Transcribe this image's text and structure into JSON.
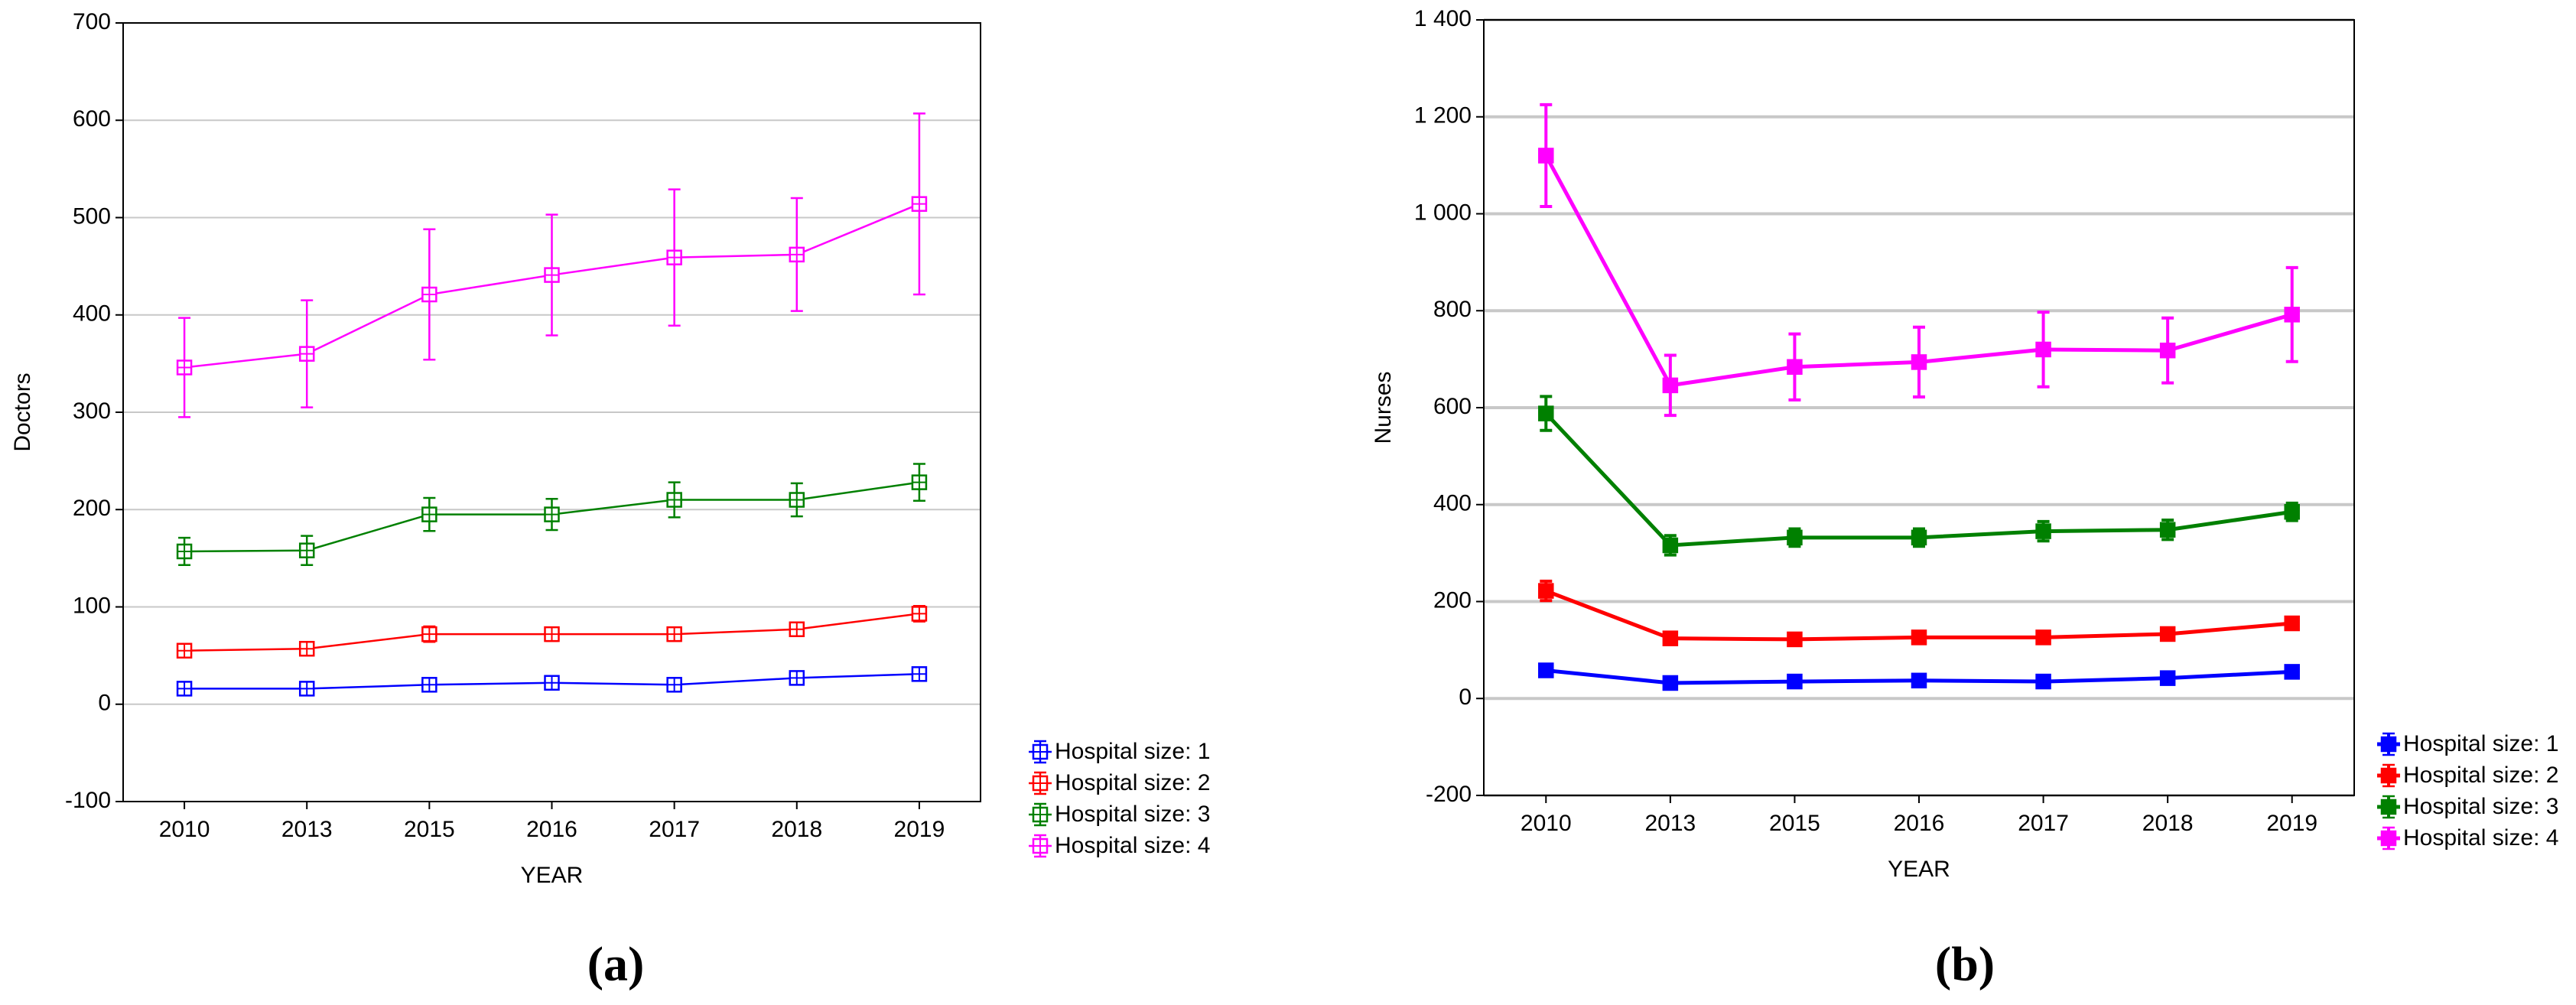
{
  "chart_data": [
    {
      "type": "line",
      "panel_label": "(a)",
      "x_label": "YEAR",
      "y_label": "Doctors",
      "categories": [
        "2010",
        "2013",
        "2015",
        "2016",
        "2017",
        "2018",
        "2019"
      ],
      "ylim": [
        -100,
        700
      ],
      "yticks": [
        -100,
        0,
        100,
        200,
        300,
        400,
        500,
        600,
        700
      ],
      "grid": true,
      "marker": "open-square",
      "series": [
        {
          "name": "Hospital size: 1",
          "color": "#0000ff",
          "values": [
            16,
            16,
            20,
            22,
            20,
            27,
            31
          ],
          "errors": [
            5,
            5,
            5,
            5,
            5,
            5,
            5
          ]
        },
        {
          "name": "Hospital size: 2",
          "color": "#ff0000",
          "values": [
            55,
            57,
            72,
            72,
            72,
            77,
            93
          ],
          "errors": [
            6,
            6,
            8,
            7,
            7,
            7,
            8
          ]
        },
        {
          "name": "Hospital size: 3",
          "color": "#008000",
          "values": [
            157,
            158,
            195,
            195,
            210,
            210,
            228
          ],
          "errors": [
            14,
            15,
            17,
            16,
            18,
            17,
            19
          ]
        },
        {
          "name": "Hospital size: 4",
          "color": "#ff00ff",
          "values": [
            346,
            360,
            421,
            441,
            459,
            462,
            514
          ],
          "errors": [
            51,
            55,
            67,
            62,
            70,
            58,
            93
          ]
        }
      ]
    },
    {
      "type": "line",
      "panel_label": "(b)",
      "x_label": "YEAR",
      "y_label": "Nurses",
      "categories": [
        "2010",
        "2013",
        "2015",
        "2016",
        "2017",
        "2018",
        "2019"
      ],
      "ylim": [
        -200,
        1400
      ],
      "yticks": [
        -200,
        0,
        200,
        400,
        600,
        800,
        {
          "value": 1000,
          "label": "1 000"
        },
        {
          "value": 1200,
          "label": "1 200"
        },
        {
          "value": 1400,
          "label": "1 400"
        }
      ],
      "grid": true,
      "marker": "filled-square",
      "series": [
        {
          "name": "Hospital size: 1",
          "color": "#0000ff",
          "values": [
            58,
            32,
            35,
            37,
            35,
            42,
            55
          ],
          "errors": [
            10,
            8,
            8,
            8,
            8,
            8,
            9
          ]
        },
        {
          "name": "Hospital size: 2",
          "color": "#ff0000",
          "values": [
            222,
            124,
            122,
            126,
            126,
            133,
            155
          ],
          "errors": [
            20,
            12,
            10,
            10,
            10,
            10,
            10
          ]
        },
        {
          "name": "Hospital size: 3",
          "color": "#008000",
          "values": [
            588,
            316,
            332,
            332,
            345,
            348,
            385
          ],
          "errors": [
            35,
            20,
            18,
            18,
            20,
            20,
            18
          ]
        },
        {
          "name": "Hospital size: 4",
          "color": "#ff00ff",
          "values": [
            1120,
            646,
            684,
            694,
            720,
            718,
            792
          ],
          "errors": [
            105,
            62,
            68,
            72,
            77,
            67,
            97
          ]
        }
      ]
    }
  ]
}
